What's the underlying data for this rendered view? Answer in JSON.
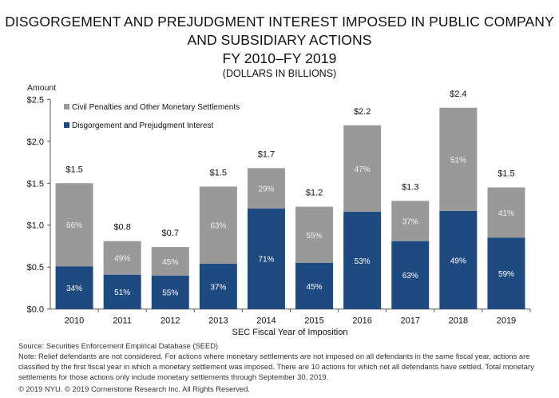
{
  "chart_data": {
    "type": "bar",
    "stacked": true,
    "title_lines": [
      "DISGORGEMENT AND PREJUDGMENT INTEREST IMPOSED IN PUBLIC COMPANY",
      "AND SUBSIDIARY ACTIONS",
      "FY 2010–FY 2019"
    ],
    "subtitle": "(DOLLARS IN BILLIONS)",
    "xlabel": "SEC Fiscal Year of Imposition",
    "ylabel": "Amount",
    "ylim": [
      0,
      2.5
    ],
    "yticks": [
      "$0.0",
      "$0.5",
      "$1.0",
      "$1.5",
      "$2.0",
      "$2.5"
    ],
    "grid": false,
    "legend_position": "top-left",
    "categories": [
      "2010",
      "2011",
      "2012",
      "2013",
      "2014",
      "2015",
      "2016",
      "2017",
      "2018",
      "2019"
    ],
    "series": [
      {
        "name": "Disgorgement and Prejudgment Interest",
        "color": "#1d4a80",
        "values": [
          0.51,
          0.41,
          0.4,
          0.54,
          1.2,
          0.55,
          1.16,
          0.81,
          1.17,
          0.85
        ],
        "labels": [
          "34%",
          "51%",
          "55%",
          "37%",
          "71%",
          "45%",
          "53%",
          "63%",
          "49%",
          "59%"
        ]
      },
      {
        "name": "Civil Penalties and Other Monetary Settlements",
        "color": "#999999",
        "values": [
          0.99,
          0.4,
          0.34,
          0.92,
          0.48,
          0.67,
          1.03,
          0.48,
          1.23,
          0.6
        ],
        "labels": [
          "66%",
          "49%",
          "45%",
          "63%",
          "29%",
          "55%",
          "47%",
          "37%",
          "51%",
          "41%"
        ]
      }
    ],
    "totals": [
      "$1.5",
      "$0.8",
      "$0.7",
      "$1.5",
      "$1.7",
      "$1.2",
      "$2.2",
      "$1.3",
      "$2.4",
      "$1.5"
    ]
  },
  "footer": {
    "source": "Source: Securities Enforcement Empirical Database (SEED)",
    "note": "Note: Relief defendants are not considered. For actions where monetary settlements are not imposed on all defendants in the same fiscal year, actions are classified by the first fiscal year in which a monetary settlement was imposed. There are 10 actions for which not all defendants have settled. Total monetary settlements for those actions only include monetary settlements through September 30, 2019.",
    "copyright": "© 2019 NYU. © 2019 Cornerstone Research Inc. All Rights Reserved."
  }
}
